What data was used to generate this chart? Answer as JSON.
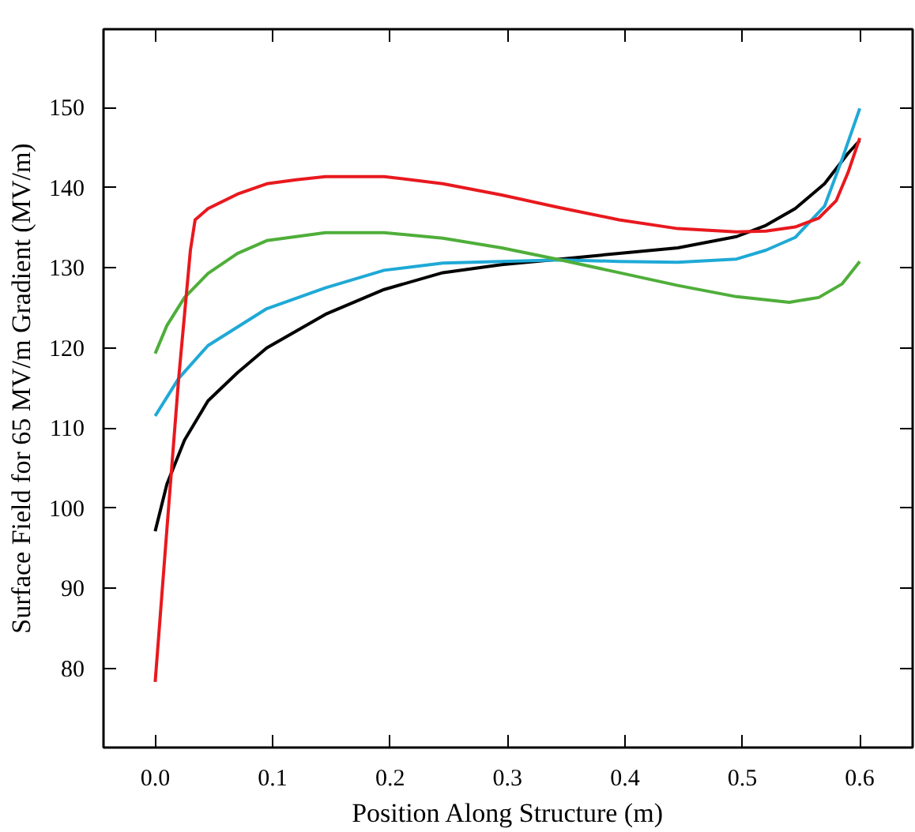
{
  "chart_data": {
    "type": "line",
    "xlabel": "Position Along Structure (m)",
    "ylabel": "Surface Field for 65 MV/m Gradient (MV/m)",
    "xlim": [
      -0.044,
      0.645
    ],
    "ylim": [
      70.1,
      159.8
    ],
    "xticks": [
      {
        "value": 0,
        "label": "0.0"
      },
      0.1,
      0.2,
      0.3,
      0.4,
      0.5,
      0.6
    ],
    "yticks": [
      80,
      90,
      100,
      110,
      120,
      130,
      140,
      150
    ],
    "grid": false,
    "marker": "none",
    "line_style": "solid",
    "series": [
      {
        "color": "#000000",
        "x": [
          0,
          0.01,
          0.025,
          0.045,
          0.07,
          0.095,
          0.145,
          0.195,
          0.245,
          0.295,
          0.345,
          0.395,
          0.445,
          0.495,
          0.52,
          0.545,
          0.57,
          0.59,
          0.6
        ],
        "values": [
          97.1,
          103,
          108.5,
          113.4,
          116.9,
          120,
          124.2,
          127.3,
          129.4,
          130.4,
          131.1,
          131.8,
          132.5,
          133.9,
          135.3,
          137.4,
          140.5,
          144.3,
          145.9
        ]
      },
      {
        "color": "#1fa9d6",
        "x": [
          0,
          0.02,
          0.045,
          0.095,
          0.145,
          0.195,
          0.245,
          0.295,
          0.345,
          0.395,
          0.445,
          0.495,
          0.52,
          0.545,
          0.57,
          0.585,
          0.6
        ],
        "values": [
          111.5,
          116.2,
          120.3,
          124.9,
          127.5,
          129.7,
          130.6,
          130.8,
          131,
          130.8,
          130.7,
          131.1,
          132.2,
          133.8,
          137.7,
          143.6,
          149.9
        ]
      },
      {
        "color": "#4fae3a",
        "x": [
          0,
          0.01,
          0.025,
          0.045,
          0.07,
          0.095,
          0.145,
          0.195,
          0.245,
          0.295,
          0.345,
          0.395,
          0.445,
          0.495,
          0.54,
          0.565,
          0.585,
          0.6
        ],
        "values": [
          119.3,
          122.8,
          126.3,
          129.3,
          131.8,
          133.4,
          134.4,
          134.4,
          133.7,
          132.5,
          131,
          129.4,
          127.8,
          126.4,
          125.7,
          126.3,
          128,
          130.8
        ]
      },
      {
        "color": "#e8191e",
        "x": [
          0,
          0.01,
          0.02,
          0.03,
          0.034,
          0.045,
          0.07,
          0.095,
          0.12,
          0.145,
          0.195,
          0.245,
          0.295,
          0.345,
          0.395,
          0.445,
          0.495,
          0.52,
          0.545,
          0.565,
          0.58,
          0.59,
          0.6
        ],
        "values": [
          78.3,
          97.4,
          116.2,
          132.2,
          136,
          137.4,
          139.2,
          140.5,
          141,
          141.4,
          141.4,
          140.5,
          139.1,
          137.5,
          136,
          134.9,
          134.5,
          134.6,
          135.1,
          136.2,
          138.4,
          141.9,
          146.2
        ]
      }
    ]
  }
}
